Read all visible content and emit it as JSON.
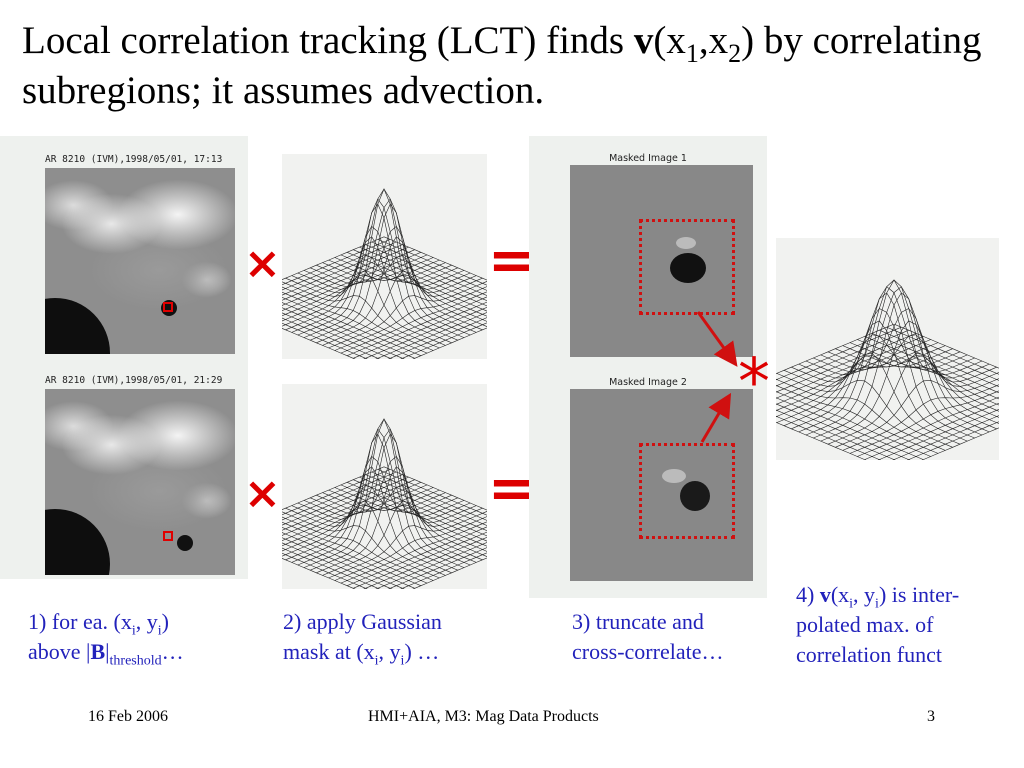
{
  "title": {
    "part1": "Local correlation tracking (LCT) finds ",
    "bold_v": "v",
    "part2": "(x",
    "sub1": "1",
    "part3": ",x",
    "sub2": "2",
    "part4": ") by correlating subregions; it assumes advection."
  },
  "images": {
    "mag1_label": "AR 8210 (IVM),1998/05/01, 17:13",
    "mag2_label": "AR 8210 (IVM),1998/05/01, 21:29",
    "masked1_label": "Masked Image 1",
    "masked2_label": "Masked Image 2"
  },
  "operators": {
    "times": "×",
    "equals": "=",
    "convolve": "*"
  },
  "captions": {
    "step1": {
      "a": "1) for ea. (x",
      "sub_i1": "i",
      "b": ", y",
      "sub_i2": "i",
      "c": ")",
      "d": "above |",
      "bold_B": "B",
      "e": "|",
      "sub_thr": "threshold",
      "f": "…"
    },
    "step2": {
      "a": "2) apply Gaussian",
      "b": "mask at (x",
      "sub_i1": "i",
      "c": ", y",
      "sub_i2": "i",
      "d": ") …"
    },
    "step3": {
      "a": "3) truncate and",
      "b": "cross-correlate…"
    },
    "step4": {
      "a": "4) ",
      "bold_v": "v",
      "b": "(x",
      "sub_i1": "i",
      "c": ", y",
      "sub_i2": "i",
      "d": ") is inter-",
      "e": "polated max. of",
      "f": "correlation funct"
    }
  },
  "footer": {
    "date": "16 Feb 2006",
    "center": "HMI+AIA, M3: Mag Data Products",
    "page": "3"
  },
  "colors": {
    "operator_red": "#dd0000",
    "caption_blue": "#2222bb"
  }
}
